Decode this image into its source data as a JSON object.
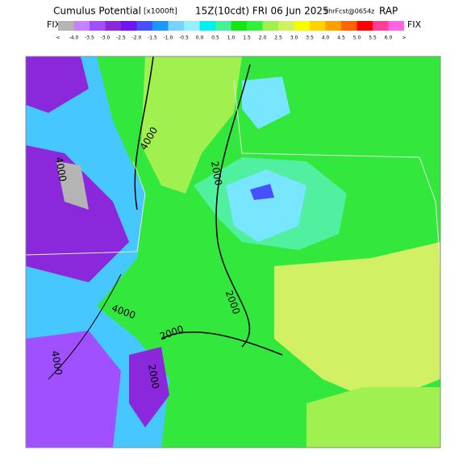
{
  "header": {
    "title": "Cumulus Potential",
    "units": "[x1000ft]",
    "valid": "15Z(10cdt) FRI 06 Jun 2025",
    "forecast": "9hrFcst@0654z",
    "model": "RAP",
    "fix_left": "FIX",
    "fix_right": "FIX"
  },
  "legend": {
    "labels": [
      "<",
      "-4.0",
      "-3.5",
      "-3.0",
      "-2.5",
      "-2.0",
      "-1.5",
      "-1.0",
      "-0.5",
      "0.0",
      "0.5",
      "1.0",
      "1.5",
      "2.0",
      "2.5",
      "3.0",
      "3.5",
      "4.0",
      "4.5",
      "5.0",
      "5.5",
      "6.0",
      ">"
    ],
    "colors": [
      "#b4b4b4",
      "#c882ff",
      "#a050ff",
      "#8c28dc",
      "#6e14f0",
      "#4650ff",
      "#1e96ff",
      "#78d2ff",
      "#96f0ff",
      "#00f0f0",
      "#46f096",
      "#14e614",
      "#32f03c",
      "#a0f050",
      "#d2f064",
      "#fafa00",
      "#ffd200",
      "#ffa000",
      "#ff6400",
      "#ff0000",
      "#ff3c96",
      "#ff64e6"
    ]
  },
  "map": {
    "contour_labels": [
      "4000",
      "2000",
      "4000",
      "2000",
      "4000",
      "2000",
      "4000",
      "2000"
    ]
  }
}
